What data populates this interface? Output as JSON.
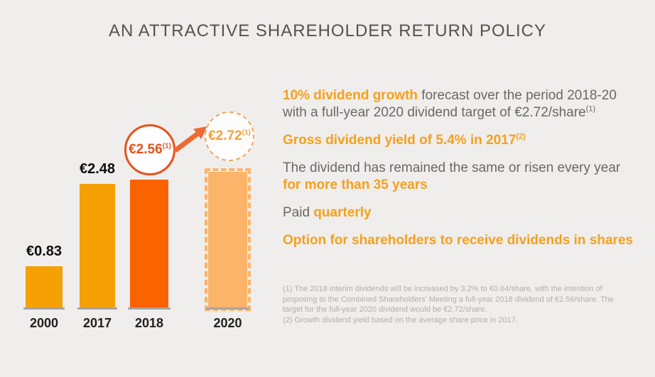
{
  "page": {
    "title": "AN ATTRACTIVE SHAREHOLDER RETURN POLICY",
    "background_color": "#EFEEEC"
  },
  "chart_data": {
    "type": "bar",
    "categories": [
      "2000",
      "2017",
      "2018",
      "2020"
    ],
    "values": [
      0.83,
      2.48,
      2.56,
      2.72
    ],
    "unit": "EUR per share",
    "bar_value_labels": [
      "€0.83",
      "€2.48",
      null,
      null
    ],
    "bar_colors": [
      "#F5A105",
      "#F5A105",
      "#FB6200",
      "#FBB469"
    ],
    "bar_border_styles": [
      "solid",
      "solid",
      "solid",
      "dashed"
    ],
    "ylim": [
      0,
      2.72
    ],
    "grid": false,
    "legend": false,
    "callouts": [
      {
        "category": "2018",
        "value_label": "€2.56",
        "footnote_ref": "(1)",
        "circle_style": "solid",
        "color": "#E8501A"
      },
      {
        "category": "2020",
        "value_label": "€2.72",
        "footnote_ref": "(1)",
        "circle_style": "dashed",
        "color": "#F7A038"
      }
    ],
    "arrow": {
      "from": "2018 callout",
      "to": "2020 callout",
      "color": "#EF6A31"
    }
  },
  "key_points": [
    {
      "segments": [
        {
          "text": "10% dividend growth",
          "style": "highlight"
        },
        {
          "text": " forecast over the period 2018-20 with a full-year 2020 dividend target of €2.72/share",
          "style": "normal"
        },
        {
          "text": "(1)",
          "style": "sup-normal"
        }
      ]
    },
    {
      "segments": [
        {
          "text": "Gross dividend yield of 5.4% in 2017",
          "style": "highlight"
        },
        {
          "text": "(2)",
          "style": "sup-highlight"
        }
      ]
    },
    {
      "segments": [
        {
          "text": "The dividend has remained the same or risen every year ",
          "style": "normal"
        },
        {
          "text": "for more than 35 years",
          "style": "highlight"
        }
      ]
    },
    {
      "segments": [
        {
          "text": "Paid ",
          "style": "normal"
        },
        {
          "text": "quarterly",
          "style": "highlight"
        }
      ]
    },
    {
      "segments": [
        {
          "text": "Option for shareholders to receive dividends in shares",
          "style": "highlight"
        }
      ]
    }
  ],
  "footnotes": [
    "(1) The 2018 interim dividends will be increased by 3.2% to €0.64/share, with the intention of proposing to the Combined Shareholders' Meeting a full-year 2018 dividend of €2.56/share. The target for the full-year 2020 dividend would be €2.72/share.",
    "(2) Growth dividend yield based on the average share price in 2017."
  ],
  "colors": {
    "highlight_orange": "#F5A01E",
    "body_gray": "#6C6864",
    "footnote_gray": "#B2B0AE",
    "title_gray": "#56524E"
  }
}
